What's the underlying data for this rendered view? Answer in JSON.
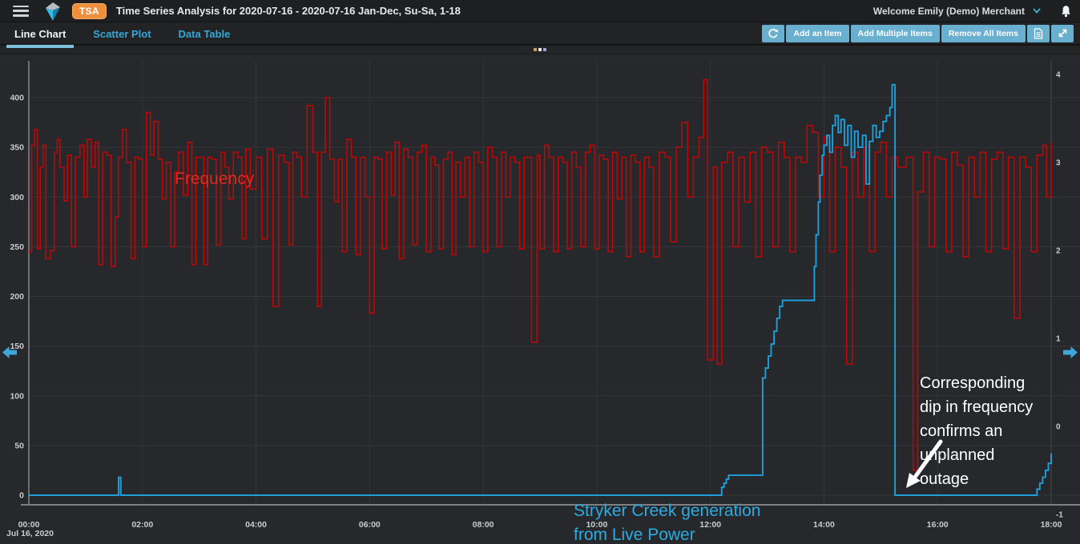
{
  "app": {
    "badge": "TSA",
    "title": "Time Series Analysis for 2020-07-16 - 2020-07-16 Jan-Dec, Su-Sa, 1-18",
    "welcome": "Welcome Emily (Demo) Merchant"
  },
  "tabs": [
    {
      "label": "Line Chart",
      "active": true
    },
    {
      "label": "Scatter Plot",
      "active": false
    },
    {
      "label": "Data Table",
      "active": false
    }
  ],
  "toolbar": {
    "add_item": "Add an Item",
    "add_multiple": "Add Multiple Items",
    "remove_all": "Remove All Items"
  },
  "annotations": {
    "frequency_label": {
      "text": "Frequency",
      "color": "#df2a1d"
    },
    "stryker_label": {
      "line1": "Stryker Creek generation",
      "line2": "from Live Power",
      "color": "#2aace2"
    },
    "outage_note": {
      "lines": [
        "Corresponding",
        "dip in frequency",
        "confirms an",
        "unplanned",
        "outage"
      ],
      "color": "#ffffff"
    }
  },
  "chart_data": {
    "type": "line",
    "title": "",
    "x_axis": {
      "tick_labels": [
        "00:00",
        "02:00",
        "04:00",
        "06:00",
        "08:00",
        "10:00",
        "12:00",
        "14:00",
        "16:00",
        "18:00"
      ],
      "tick_hours": [
        0,
        2,
        4,
        6,
        8,
        10,
        12,
        14,
        16,
        18
      ],
      "date_label": "Jul 16, 2020",
      "range_hours": [
        0,
        18
      ]
    },
    "y_axis_left": {
      "tick_values": [
        0,
        50,
        100,
        150,
        200,
        250,
        300,
        350,
        400
      ],
      "range": [
        0,
        430
      ]
    },
    "y_axis_right": {
      "tick_values": [
        4,
        3,
        2,
        1,
        0,
        -1
      ],
      "range": [
        -1,
        4.4
      ]
    },
    "grid": true,
    "legend_position": "inline-annotations",
    "series": [
      {
        "name": "Frequency",
        "color": "#bd0707",
        "axis": "left",
        "points": [
          [
            0,
            245
          ],
          [
            0.05,
            352
          ],
          [
            0.1,
            368
          ],
          [
            0.15,
            248
          ],
          [
            0.2,
            330
          ],
          [
            0.25,
            352
          ],
          [
            0.3,
            238
          ],
          [
            0.38,
            246
          ],
          [
            0.45,
            345
          ],
          [
            0.5,
            358
          ],
          [
            0.55,
            330
          ],
          [
            0.62,
            296
          ],
          [
            0.68,
            342
          ],
          [
            0.75,
            250
          ],
          [
            0.82,
            340
          ],
          [
            0.9,
            352
          ],
          [
            0.97,
            300
          ],
          [
            1.03,
            358
          ],
          [
            1.1,
            330
          ],
          [
            1.17,
            355
          ],
          [
            1.23,
            232
          ],
          [
            1.3,
            345
          ],
          [
            1.38,
            342
          ],
          [
            1.45,
            230
          ],
          [
            1.52,
            280
          ],
          [
            1.58,
            340
          ],
          [
            1.65,
            368
          ],
          [
            1.72,
            335
          ],
          [
            1.8,
            238
          ],
          [
            1.87,
            340
          ],
          [
            1.94,
            338
          ],
          [
            2,
            250
          ],
          [
            2.07,
            385
          ],
          [
            2.14,
            342
          ],
          [
            2.2,
            376
          ],
          [
            2.28,
            338
          ],
          [
            2.35,
            298
          ],
          [
            2.42,
            335
          ],
          [
            2.5,
            250
          ],
          [
            2.57,
            325
          ],
          [
            2.64,
            345
          ],
          [
            2.72,
            302
          ],
          [
            2.8,
            355
          ],
          [
            2.87,
            232
          ],
          [
            2.94,
            340
          ],
          [
            3,
            340
          ],
          [
            3.08,
            232
          ],
          [
            3.15,
            340
          ],
          [
            3.22,
            338
          ],
          [
            3.3,
            252
          ],
          [
            3.38,
            345
          ],
          [
            3.45,
            330
          ],
          [
            3.52,
            298
          ],
          [
            3.6,
            345
          ],
          [
            3.68,
            340
          ],
          [
            3.75,
            258
          ],
          [
            3.82,
            348
          ],
          [
            3.9,
            308
          ],
          [
            4,
            340
          ],
          [
            4.1,
            258
          ],
          [
            4.2,
            348
          ],
          [
            4.3,
            190
          ],
          [
            4.4,
            342
          ],
          [
            4.5,
            335
          ],
          [
            4.58,
            252
          ],
          [
            4.65,
            345
          ],
          [
            4.72,
            340
          ],
          [
            4.8,
            300
          ],
          [
            4.9,
            392
          ],
          [
            5,
            345
          ],
          [
            5.08,
            190
          ],
          [
            5.15,
            345
          ],
          [
            5.22,
            400
          ],
          [
            5.3,
            338
          ],
          [
            5.38,
            295
          ],
          [
            5.45,
            338
          ],
          [
            5.52,
            245
          ],
          [
            5.6,
            358
          ],
          [
            5.68,
            340
          ],
          [
            5.76,
            242
          ],
          [
            5.84,
            340
          ],
          [
            5.92,
            300
          ],
          [
            6,
            183
          ],
          [
            6.08,
            340
          ],
          [
            6.15,
            338
          ],
          [
            6.22,
            248
          ],
          [
            6.3,
            345
          ],
          [
            6.38,
            302
          ],
          [
            6.45,
            355
          ],
          [
            6.52,
            238
          ],
          [
            6.6,
            348
          ],
          [
            6.68,
            340
          ],
          [
            6.76,
            252
          ],
          [
            6.84,
            345
          ],
          [
            6.92,
            352
          ],
          [
            7,
            245
          ],
          [
            7.08,
            340
          ],
          [
            7.15,
            332
          ],
          [
            7.22,
            248
          ],
          [
            7.3,
            338
          ],
          [
            7.38,
            345
          ],
          [
            7.45,
            242
          ],
          [
            7.52,
            335
          ],
          [
            7.6,
            300
          ],
          [
            7.68,
            340
          ],
          [
            7.76,
            250
          ],
          [
            7.84,
            345
          ],
          [
            7.92,
            335
          ],
          [
            8,
            245
          ],
          [
            8.08,
            350
          ],
          [
            8.16,
            340
          ],
          [
            8.24,
            250
          ],
          [
            8.32,
            345
          ],
          [
            8.4,
            300
          ],
          [
            8.48,
            340
          ],
          [
            8.56,
            335
          ],
          [
            8.64,
            248
          ],
          [
            8.72,
            340
          ],
          [
            8.85,
            154
          ],
          [
            8.95,
            342
          ],
          [
            9,
            248
          ],
          [
            9.08,
            352
          ],
          [
            9.16,
            340
          ],
          [
            9.24,
            245
          ],
          [
            9.32,
            340
          ],
          [
            9.4,
            335
          ],
          [
            9.48,
            248
          ],
          [
            9.56,
            345
          ],
          [
            9.64,
            330
          ],
          [
            9.72,
            250
          ],
          [
            9.8,
            345
          ],
          [
            9.88,
            352
          ],
          [
            9.96,
            248
          ],
          [
            10.04,
            342
          ],
          [
            10.12,
            338
          ],
          [
            10.2,
            245
          ],
          [
            10.28,
            345
          ],
          [
            10.36,
            298
          ],
          [
            10.44,
            340
          ],
          [
            10.52,
            240
          ],
          [
            10.6,
            342
          ],
          [
            10.68,
            335
          ],
          [
            10.76,
            245
          ],
          [
            10.84,
            340
          ],
          [
            10.92,
            330
          ],
          [
            11,
            240
          ],
          [
            11.1,
            345
          ],
          [
            11.2,
            340
          ],
          [
            11.3,
            255
          ],
          [
            11.4,
            350
          ],
          [
            11.5,
            375
          ],
          [
            11.6,
            300
          ],
          [
            11.7,
            340
          ],
          [
            11.8,
            360
          ],
          [
            11.88,
            418
          ],
          [
            11.95,
            136
          ],
          [
            12.05,
            330
          ],
          [
            12.12,
            132
          ],
          [
            12.2,
            335
          ],
          [
            12.3,
            345
          ],
          [
            12.4,
            250
          ],
          [
            12.5,
            340
          ],
          [
            12.6,
            295
          ],
          [
            12.7,
            345
          ],
          [
            12.8,
            240
          ],
          [
            12.9,
            350
          ],
          [
            13,
            345
          ],
          [
            13.1,
            250
          ],
          [
            13.2,
            355
          ],
          [
            13.3,
            340
          ],
          [
            13.4,
            245
          ],
          [
            13.5,
            340
          ],
          [
            13.6,
            335
          ],
          [
            13.7,
            372
          ],
          [
            13.8,
            365
          ],
          [
            13.9,
            300
          ],
          [
            14,
            360
          ],
          [
            14.1,
            245
          ],
          [
            14.2,
            350
          ],
          [
            14.3,
            330
          ],
          [
            14.4,
            132
          ],
          [
            14.5,
            345
          ],
          [
            14.6,
            300
          ],
          [
            14.7,
            350
          ],
          [
            14.8,
            245
          ],
          [
            14.9,
            345
          ],
          [
            15,
            355
          ],
          [
            15.1,
            300
          ],
          [
            15.2,
            340
          ],
          [
            15.3,
            330
          ],
          [
            15.45,
            340
          ],
          [
            15.57,
            25
          ],
          [
            15.65,
            305
          ],
          [
            15.75,
            345
          ],
          [
            15.85,
            250
          ],
          [
            15.95,
            340
          ],
          [
            16.05,
            338
          ],
          [
            16.15,
            245
          ],
          [
            16.25,
            345
          ],
          [
            16.35,
            332
          ],
          [
            16.45,
            240
          ],
          [
            16.55,
            340
          ],
          [
            16.65,
            300
          ],
          [
            16.75,
            345
          ],
          [
            16.85,
            245
          ],
          [
            16.95,
            338
          ],
          [
            17.05,
            345
          ],
          [
            17.15,
            248
          ],
          [
            17.25,
            340
          ],
          [
            17.35,
            178
          ],
          [
            17.45,
            340
          ],
          [
            17.55,
            330
          ],
          [
            17.65,
            245
          ],
          [
            17.75,
            342
          ],
          [
            17.85,
            352
          ],
          [
            17.92,
            300
          ],
          [
            18,
            355
          ]
        ]
      },
      {
        "name": "Stryker Creek generation from Live Power",
        "color": "#1e9fdb",
        "axis": "left",
        "points": [
          [
            0,
            0
          ],
          [
            1.56,
            0
          ],
          [
            1.58,
            18
          ],
          [
            1.62,
            0
          ],
          [
            12.2,
            8
          ],
          [
            12.24,
            12
          ],
          [
            12.28,
            16
          ],
          [
            12.32,
            20
          ],
          [
            12.92,
            118
          ],
          [
            12.97,
            128
          ],
          [
            13.02,
            140
          ],
          [
            13.07,
            152
          ],
          [
            13.12,
            165
          ],
          [
            13.17,
            178
          ],
          [
            13.22,
            190
          ],
          [
            13.27,
            196
          ],
          [
            13.8,
            196
          ],
          [
            13.83,
            230
          ],
          [
            13.86,
            262
          ],
          [
            13.9,
            295
          ],
          [
            13.93,
            322
          ],
          [
            13.97,
            342
          ],
          [
            14,
            352
          ],
          [
            14.05,
            362
          ],
          [
            14.1,
            345
          ],
          [
            14.15,
            372
          ],
          [
            14.2,
            382
          ],
          [
            14.25,
            365
          ],
          [
            14.3,
            378
          ],
          [
            14.36,
            352
          ],
          [
            14.42,
            372
          ],
          [
            14.48,
            340
          ],
          [
            14.54,
            366
          ],
          [
            14.6,
            350
          ],
          [
            14.68,
            362
          ],
          [
            14.74,
            313
          ],
          [
            14.8,
            356
          ],
          [
            14.86,
            372
          ],
          [
            14.92,
            360
          ],
          [
            14.98,
            366
          ],
          [
            15.04,
            376
          ],
          [
            15.1,
            382
          ],
          [
            15.16,
            390
          ],
          [
            15.2,
            413
          ],
          [
            15.25,
            0
          ],
          [
            17.7,
            0
          ],
          [
            17.75,
            6
          ],
          [
            17.8,
            12
          ],
          [
            17.85,
            18
          ],
          [
            17.9,
            25
          ],
          [
            17.95,
            32
          ],
          [
            18,
            42
          ]
        ]
      }
    ]
  }
}
